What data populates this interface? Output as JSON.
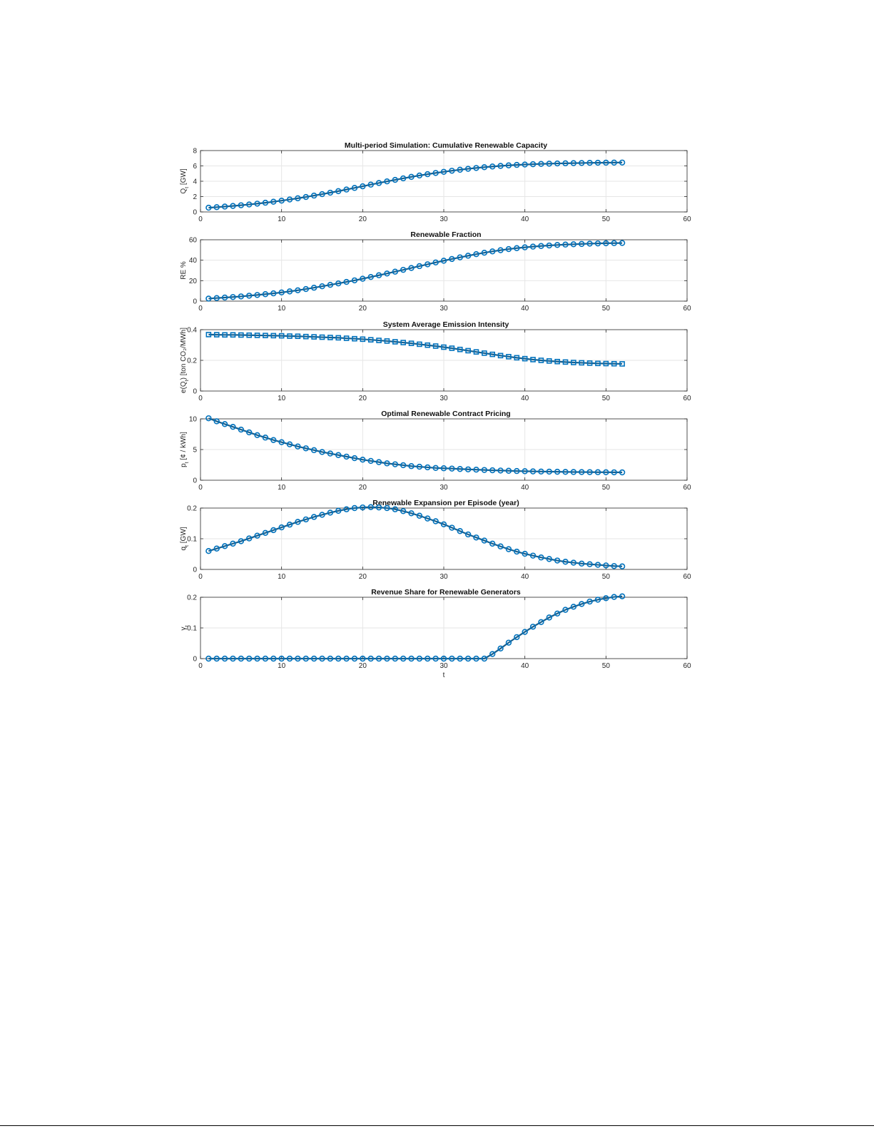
{
  "chart_data": [
    {
      "type": "line",
      "title": "Multi-period Simulation: Cumulative Renewable Capacity",
      "ylabel": "Q_t [GW]",
      "ylabel_main": "Q",
      "ylabel_sub": "t",
      "ylabel_rest": " [GW]",
      "xlabel": "",
      "xlim": [
        0,
        60
      ],
      "ylim": [
        0,
        8
      ],
      "xticks": [
        0,
        10,
        20,
        30,
        40,
        50,
        60
      ],
      "yticks": [
        0,
        2,
        4,
        6,
        8
      ],
      "grid": true,
      "marker": "circle",
      "color": "#0072BD",
      "series": [
        {
          "x": [
            1,
            2,
            3,
            4,
            5,
            6,
            7,
            8,
            9,
            10,
            11,
            12,
            13,
            14,
            15,
            16,
            17,
            18,
            19,
            20,
            21,
            22,
            23,
            24,
            25,
            26,
            27,
            28,
            29,
            30,
            31,
            32,
            33,
            34,
            35,
            36,
            37,
            38,
            39,
            40,
            41,
            42,
            43,
            44,
            45,
            46,
            47,
            48,
            49,
            50,
            51,
            52
          ],
          "values": [
            0.55,
            0.62,
            0.7,
            0.78,
            0.87,
            0.97,
            1.08,
            1.2,
            1.33,
            1.47,
            1.62,
            1.78,
            1.95,
            2.13,
            2.32,
            2.51,
            2.71,
            2.92,
            3.13,
            3.34,
            3.56,
            3.77,
            3.98,
            4.18,
            4.38,
            4.57,
            4.75,
            4.92,
            5.08,
            5.23,
            5.37,
            5.5,
            5.62,
            5.73,
            5.83,
            5.92,
            6.0,
            6.07,
            6.13,
            6.18,
            6.22,
            6.26,
            6.29,
            6.32,
            6.34,
            6.36,
            6.38,
            6.4,
            6.41,
            6.42,
            6.43,
            6.44
          ]
        }
      ]
    },
    {
      "type": "line",
      "title": "Renewable Fraction",
      "ylabel": "RE %",
      "xlabel": "",
      "xlim": [
        0,
        60
      ],
      "ylim": [
        0,
        60
      ],
      "xticks": [
        0,
        10,
        20,
        30,
        40,
        50,
        60
      ],
      "yticks": [
        0,
        20,
        40,
        60
      ],
      "grid": true,
      "marker": "circle",
      "color": "#0072BD",
      "series": [
        {
          "x": [
            1,
            2,
            3,
            4,
            5,
            6,
            7,
            8,
            9,
            10,
            11,
            12,
            13,
            14,
            15,
            16,
            17,
            18,
            19,
            20,
            21,
            22,
            23,
            24,
            25,
            26,
            27,
            28,
            29,
            30,
            31,
            32,
            33,
            34,
            35,
            36,
            37,
            38,
            39,
            40,
            41,
            42,
            43,
            44,
            45,
            46,
            47,
            48,
            49,
            50,
            51,
            52
          ],
          "values": [
            2.5,
            3.0,
            3.5,
            4.0,
            4.6,
            5.3,
            6.0,
            6.8,
            7.6,
            8.5,
            9.5,
            10.6,
            11.8,
            13.1,
            14.5,
            15.9,
            17.3,
            18.8,
            20.3,
            21.9,
            23.6,
            25.3,
            27.0,
            28.8,
            30.6,
            32.4,
            34.2,
            36.0,
            37.8,
            39.5,
            41.2,
            42.8,
            44.4,
            45.9,
            47.3,
            48.6,
            49.8,
            50.9,
            51.8,
            52.6,
            53.3,
            53.9,
            54.4,
            54.9,
            55.3,
            55.6,
            55.9,
            56.2,
            56.4,
            56.6,
            56.7,
            56.8
          ]
        }
      ]
    },
    {
      "type": "line",
      "title": "System Average Emission Intensity",
      "ylabel": "e(Q_t) [ton CO₂/MWh]",
      "ylabel_main": "e(Q",
      "ylabel_sub": "t",
      "ylabel_rest": ") [ton CO₂/MWh]",
      "xlabel": "",
      "xlim": [
        0,
        60
      ],
      "ylim": [
        0,
        0.4
      ],
      "xticks": [
        0,
        10,
        20,
        30,
        40,
        50,
        60
      ],
      "yticks": [
        0,
        0.2,
        0.4
      ],
      "grid": true,
      "marker": "square",
      "color": "#0072BD",
      "series": [
        {
          "x": [
            1,
            2,
            3,
            4,
            5,
            6,
            7,
            8,
            9,
            10,
            11,
            12,
            13,
            14,
            15,
            16,
            17,
            18,
            19,
            20,
            21,
            22,
            23,
            24,
            25,
            26,
            27,
            28,
            29,
            30,
            31,
            32,
            33,
            34,
            35,
            36,
            37,
            38,
            39,
            40,
            41,
            42,
            43,
            44,
            45,
            46,
            47,
            48,
            49,
            50,
            51,
            52
          ],
          "values": [
            0.368,
            0.367,
            0.366,
            0.366,
            0.365,
            0.364,
            0.363,
            0.362,
            0.361,
            0.36,
            0.358,
            0.357,
            0.355,
            0.353,
            0.351,
            0.349,
            0.347,
            0.344,
            0.341,
            0.338,
            0.334,
            0.33,
            0.326,
            0.321,
            0.316,
            0.311,
            0.305,
            0.299,
            0.293,
            0.286,
            0.279,
            0.271,
            0.263,
            0.255,
            0.247,
            0.239,
            0.231,
            0.224,
            0.217,
            0.211,
            0.205,
            0.2,
            0.196,
            0.192,
            0.189,
            0.186,
            0.184,
            0.182,
            0.18,
            0.179,
            0.178,
            0.177
          ]
        }
      ]
    },
    {
      "type": "line",
      "title": "Optimal Renewable Contract Pricing",
      "ylabel": "p_t [¢ / kWh]",
      "ylabel_main": "p",
      "ylabel_sub": "t",
      "ylabel_rest": " [¢ / kWh]",
      "xlabel": "",
      "xlim": [
        0,
        60
      ],
      "ylim": [
        0,
        10
      ],
      "xticks": [
        0,
        10,
        20,
        30,
        40,
        50,
        60
      ],
      "yticks": [
        0,
        5,
        10
      ],
      "grid": true,
      "marker": "circle",
      "color": "#0072BD",
      "series": [
        {
          "x": [
            1,
            2,
            3,
            4,
            5,
            6,
            7,
            8,
            9,
            10,
            11,
            12,
            13,
            14,
            15,
            16,
            17,
            18,
            19,
            20,
            21,
            22,
            23,
            24,
            25,
            26,
            27,
            28,
            29,
            30,
            31,
            32,
            33,
            34,
            35,
            36,
            37,
            38,
            39,
            40,
            41,
            42,
            43,
            44,
            45,
            46,
            47,
            48,
            49,
            50,
            51,
            52
          ],
          "values": [
            10.1,
            9.6,
            9.15,
            8.7,
            8.25,
            7.8,
            7.35,
            6.95,
            6.55,
            6.2,
            5.85,
            5.5,
            5.2,
            4.9,
            4.6,
            4.35,
            4.1,
            3.85,
            3.6,
            3.35,
            3.15,
            2.95,
            2.75,
            2.6,
            2.45,
            2.3,
            2.2,
            2.1,
            2.0,
            1.95,
            1.9,
            1.83,
            1.77,
            1.72,
            1.67,
            1.62,
            1.58,
            1.54,
            1.5,
            1.47,
            1.44,
            1.42,
            1.4,
            1.38,
            1.36,
            1.34,
            1.33,
            1.32,
            1.31,
            1.3,
            1.29,
            1.28
          ]
        }
      ]
    },
    {
      "type": "line",
      "title": "Renewable Expansion per Episode (year)",
      "ylabel": "q_t [GW]",
      "ylabel_main": "q",
      "ylabel_sub": "t",
      "ylabel_rest": " [GW]",
      "xlabel": "",
      "xlim": [
        0,
        60
      ],
      "ylim": [
        0,
        0.2
      ],
      "xticks": [
        0,
        10,
        20,
        30,
        40,
        50,
        60
      ],
      "yticks": [
        0,
        0.1,
        0.2
      ],
      "grid": true,
      "marker": "circle",
      "color": "#0072BD",
      "series": [
        {
          "x": [
            1,
            2,
            3,
            4,
            5,
            6,
            7,
            8,
            9,
            10,
            11,
            12,
            13,
            14,
            15,
            16,
            17,
            18,
            19,
            20,
            21,
            22,
            23,
            24,
            25,
            26,
            27,
            28,
            29,
            30,
            31,
            32,
            33,
            34,
            35,
            36,
            37,
            38,
            39,
            40,
            41,
            42,
            43,
            44,
            45,
            46,
            47,
            48,
            49,
            50,
            51,
            52
          ],
          "values": [
            0.06,
            0.068,
            0.076,
            0.084,
            0.092,
            0.101,
            0.11,
            0.119,
            0.128,
            0.137,
            0.146,
            0.155,
            0.163,
            0.171,
            0.178,
            0.185,
            0.191,
            0.196,
            0.2,
            0.202,
            0.203,
            0.202,
            0.2,
            0.196,
            0.19,
            0.183,
            0.175,
            0.166,
            0.157,
            0.147,
            0.136,
            0.125,
            0.114,
            0.104,
            0.094,
            0.084,
            0.075,
            0.066,
            0.058,
            0.051,
            0.045,
            0.039,
            0.034,
            0.029,
            0.025,
            0.022,
            0.019,
            0.017,
            0.015,
            0.013,
            0.011,
            0.01
          ]
        }
      ]
    },
    {
      "type": "line",
      "title": "Revenue Share for Renewable Generators",
      "ylabel": "γ_t",
      "ylabel_main": "γ",
      "ylabel_sub": "t",
      "ylabel_rest": "",
      "xlabel": "t",
      "xlim": [
        0,
        60
      ],
      "ylim": [
        0,
        0.2
      ],
      "xticks": [
        0,
        10,
        20,
        30,
        40,
        50,
        60
      ],
      "yticks": [
        0,
        0.1,
        0.2
      ],
      "grid": true,
      "marker": "circle",
      "color": "#0072BD",
      "series": [
        {
          "x": [
            1,
            2,
            3,
            4,
            5,
            6,
            7,
            8,
            9,
            10,
            11,
            12,
            13,
            14,
            15,
            16,
            17,
            18,
            19,
            20,
            21,
            22,
            23,
            24,
            25,
            26,
            27,
            28,
            29,
            30,
            31,
            32,
            33,
            34,
            35,
            36,
            37,
            38,
            39,
            40,
            41,
            42,
            43,
            44,
            45,
            46,
            47,
            48,
            49,
            50,
            51,
            52
          ],
          "values": [
            0,
            0,
            0,
            0,
            0,
            0,
            0,
            0,
            0,
            0,
            0,
            0,
            0,
            0,
            0,
            0,
            0,
            0,
            0,
            0,
            0,
            0,
            0,
            0,
            0,
            0,
            0,
            0,
            0,
            0,
            0,
            0,
            0,
            0,
            0,
            0.015,
            0.033,
            0.052,
            0.07,
            0.087,
            0.104,
            0.119,
            0.134,
            0.147,
            0.159,
            0.169,
            0.178,
            0.186,
            0.192,
            0.197,
            0.201,
            0.203
          ]
        }
      ]
    }
  ]
}
